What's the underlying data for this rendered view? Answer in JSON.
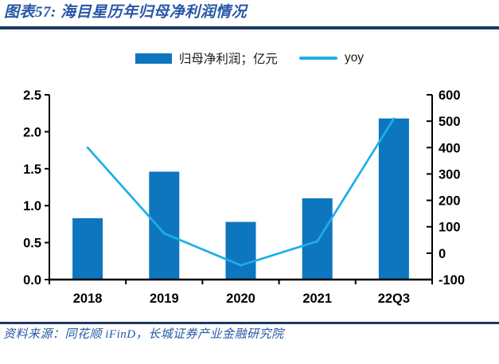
{
  "header": {
    "title": "图表57: 海目星历年归母净利润情况"
  },
  "footer": {
    "source": "资料来源：同花顺 iFinD，长城证券产业金融研究院"
  },
  "colors": {
    "title_blue": "#2757A6",
    "rule_navy": "#1F3864",
    "bar_blue": "#0E76BE",
    "line_cyan": "#1CAFE8",
    "axis_black": "#000000"
  },
  "chart_data": {
    "type": "bar+line combo",
    "title": "海目星历年归母净利润情况",
    "categories": [
      "2018",
      "2019",
      "2020",
      "2021",
      "22Q3"
    ],
    "series": [
      {
        "name": "归母净利润；亿元",
        "type": "bar",
        "axis": "left",
        "color": "#0E76BE",
        "values": [
          0.83,
          1.46,
          0.78,
          1.1,
          2.18
        ]
      },
      {
        "name": "yoy",
        "type": "line",
        "axis": "right",
        "color": "#1CAFE8",
        "values": [
          400,
          75,
          -46,
          45,
          510
        ]
      }
    ],
    "y_left": {
      "min": 0,
      "max": 2.5,
      "ticks": [
        "0.0",
        "0.5",
        "1.0",
        "1.5",
        "2.0",
        "2.5"
      ]
    },
    "y_right": {
      "min": -100,
      "max": 600,
      "ticks": [
        "-100",
        "0",
        "100",
        "200",
        "300",
        "400",
        "500",
        "600"
      ]
    },
    "grid": false,
    "legend_position": "top"
  }
}
